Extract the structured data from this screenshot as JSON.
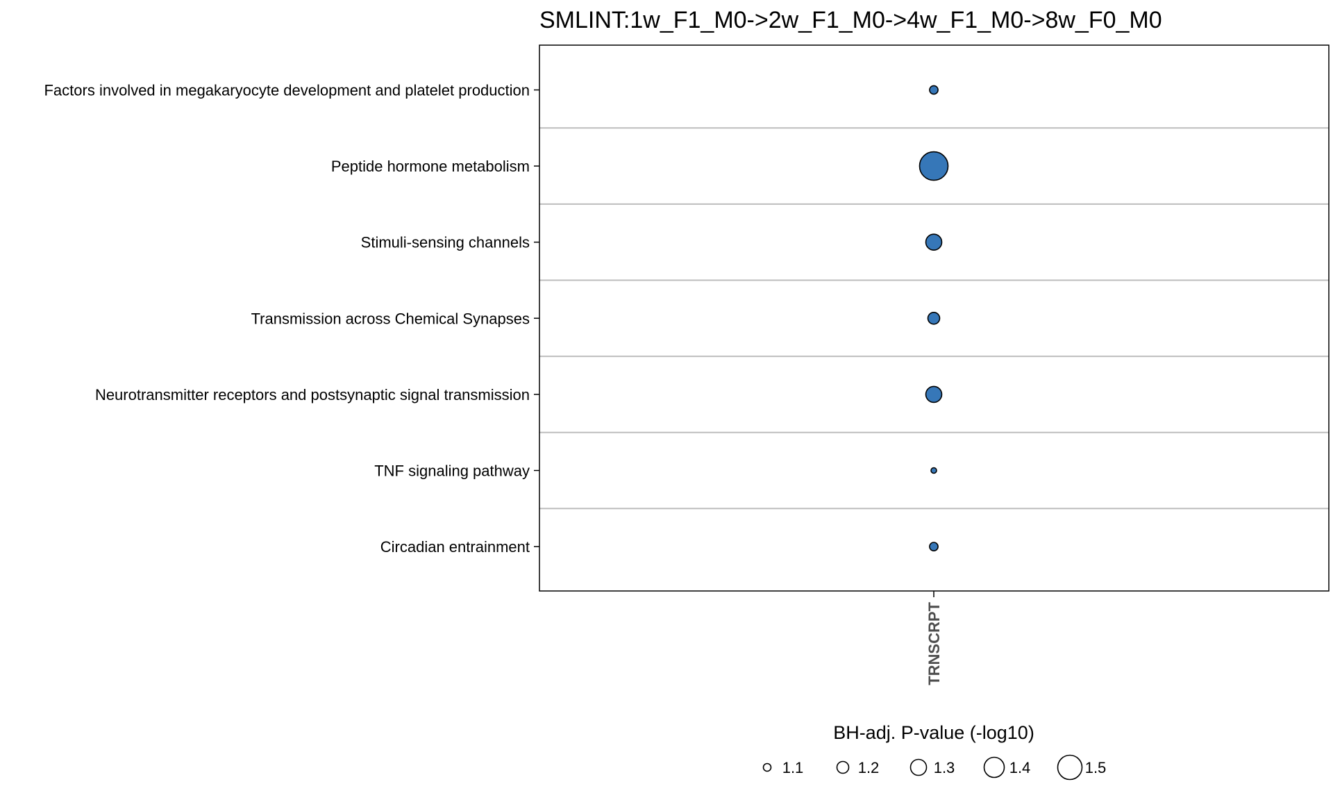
{
  "chart_data": {
    "type": "scatter",
    "title": "SMLINT:1w_F1_M0->2w_F1_M0->4w_F1_M0->8w_F0_M0",
    "xlabel": "",
    "ylabel": "",
    "x_categories": [
      "TRNSCRPT"
    ],
    "y_categories": [
      "Factors involved in megakaryocyte development and platelet production",
      "Peptide hormone metabolism",
      "Stimuli-sensing channels",
      "Transmission across Chemical Synapses",
      "Neurotransmitter receptors and postsynaptic signal transmission",
      "TNF signaling pathway",
      "Circadian entrainment"
    ],
    "points": [
      {
        "x": "TRNSCRPT",
        "y": "Factors involved in megakaryocyte development and platelet production",
        "size": 1.12
      },
      {
        "x": "TRNSCRPT",
        "y": "Peptide hormone metabolism",
        "size": 1.6
      },
      {
        "x": "TRNSCRPT",
        "y": "Stimuli-sensing channels",
        "size": 1.3
      },
      {
        "x": "TRNSCRPT",
        "y": "Transmission across Chemical Synapses",
        "size": 1.2
      },
      {
        "x": "TRNSCRPT",
        "y": "Neurotransmitter receptors and postsynaptic signal transmission",
        "size": 1.3
      },
      {
        "x": "TRNSCRPT",
        "y": "TNF signaling pathway",
        "size": 1.05
      },
      {
        "x": "TRNSCRPT",
        "y": "Circadian entrainment",
        "size": 1.12
      }
    ],
    "size_legend": {
      "title": "BH-adj. P-value (-log10)",
      "values": [
        1.1,
        1.2,
        1.3,
        1.4,
        1.5
      ],
      "labels": [
        "1.1",
        "1.2",
        "1.3",
        "1.4",
        "1.5"
      ]
    },
    "grid": "horizontal",
    "legend_position": "bottom",
    "colors": {
      "point_fill": "#3677b8",
      "point_stroke": "#000000",
      "grid": "#bdbdbd",
      "axis": "#000000",
      "x_tick_label": "#4d4d4d"
    }
  }
}
